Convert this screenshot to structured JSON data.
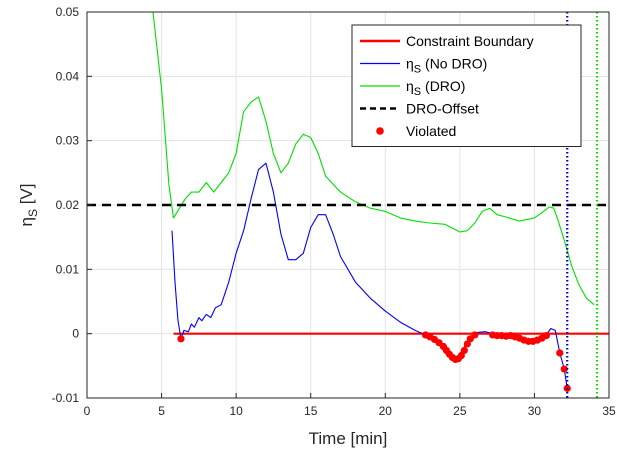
{
  "chart_data": {
    "type": "line",
    "xlabel": "Time [min]",
    "ylabel": "η",
    "ylabel_subscript": "S",
    "ylabel_unit": " [V]",
    "xlim": [
      0,
      35
    ],
    "ylim": [
      -0.01,
      0.05
    ],
    "xticks": [
      "0",
      "5",
      "10",
      "15",
      "20",
      "25",
      "30",
      "35"
    ],
    "yticks": [
      "-0.01",
      "0",
      "0.01",
      "0.02",
      "0.03",
      "0.04",
      "0.05"
    ],
    "grid": true,
    "legend_position": "top-right",
    "series": [
      {
        "name": "Constraint Boundary",
        "color": "#ff0000",
        "x": [
          5.8,
          35
        ],
        "y": [
          0,
          0
        ]
      },
      {
        "name": "ηS (No DRO)",
        "color": "#0000ff",
        "x": [
          5.7,
          5.9,
          6.1,
          6.3,
          6.5,
          6.8,
          7.0,
          7.2,
          7.5,
          7.7,
          8.0,
          8.3,
          8.6,
          9.0,
          9.5,
          10.0,
          10.5,
          11.0,
          11.5,
          12.0,
          12.5,
          13.0,
          13.5,
          14.0,
          14.5,
          15.0,
          15.5,
          16.0,
          16.5,
          17.0,
          18.0,
          19.0,
          20.0,
          21.0,
          22.0,
          22.7,
          23.2,
          23.7,
          24.2,
          24.7,
          25.2,
          25.7,
          26.2,
          26.7,
          27.2,
          27.7,
          28.2,
          28.7,
          29.2,
          29.7,
          30.2,
          30.7,
          31.1,
          31.4,
          31.7,
          32.0,
          32.2
        ],
        "y": [
          0.016,
          0.008,
          0.002,
          -0.0008,
          0.0005,
          0.0003,
          0.0015,
          0.001,
          0.0025,
          0.002,
          0.003,
          0.0025,
          0.004,
          0.0045,
          0.008,
          0.0125,
          0.016,
          0.021,
          0.0255,
          0.0265,
          0.022,
          0.0155,
          0.0115,
          0.0115,
          0.0125,
          0.0165,
          0.0185,
          0.0185,
          0.0155,
          0.012,
          0.008,
          0.0055,
          0.0035,
          0.0018,
          0.0005,
          -0.0002,
          -0.001,
          -0.002,
          -0.0035,
          -0.004,
          -0.0025,
          -0.0005,
          0.0002,
          0.0003,
          0.0,
          -0.0003,
          -0.0002,
          -0.0003,
          -0.0008,
          -0.0012,
          -0.001,
          -0.0005,
          0.0008,
          0.0005,
          -0.003,
          -0.0055,
          -0.0085
        ]
      },
      {
        "name": "ηS (DRO)",
        "color": "#00e000",
        "x": [
          4.4,
          5.0,
          5.5,
          5.8,
          6.2,
          6.6,
          7.0,
          7.5,
          8.0,
          8.5,
          9.0,
          9.5,
          10.0,
          10.5,
          11.0,
          11.5,
          12.0,
          12.5,
          13.0,
          13.5,
          14.0,
          14.5,
          15.0,
          15.5,
          16.0,
          17.0,
          18.0,
          19.0,
          20.0,
          21.0,
          22.0,
          23.0,
          24.0,
          25.0,
          25.5,
          26.0,
          26.5,
          27.0,
          27.5,
          28.0,
          29.0,
          30.0,
          30.5,
          31.0,
          31.3,
          31.6,
          32.0,
          32.5,
          33.0,
          33.5,
          34.0
        ],
        "y": [
          0.0505,
          0.038,
          0.023,
          0.018,
          0.0195,
          0.021,
          0.022,
          0.022,
          0.0235,
          0.022,
          0.0235,
          0.025,
          0.028,
          0.0345,
          0.036,
          0.0368,
          0.033,
          0.028,
          0.025,
          0.0265,
          0.0295,
          0.031,
          0.0305,
          0.028,
          0.0245,
          0.022,
          0.0205,
          0.0195,
          0.019,
          0.018,
          0.0175,
          0.0172,
          0.017,
          0.0158,
          0.016,
          0.0172,
          0.019,
          0.0195,
          0.0185,
          0.0182,
          0.0175,
          0.018,
          0.0188,
          0.0197,
          0.0195,
          0.0175,
          0.0145,
          0.0105,
          0.0075,
          0.0055,
          0.0045
        ]
      },
      {
        "name": "DRO-Offset",
        "color": "#000000",
        "x": [
          0,
          35
        ],
        "y": [
          0.02,
          0.02
        ]
      },
      {
        "name": "Violated",
        "color": "#ff0000",
        "x": [
          6.3,
          22.7,
          23.0,
          23.3,
          23.6,
          23.9,
          24.1,
          24.3,
          24.5,
          24.7,
          24.9,
          25.1,
          25.3,
          25.5,
          25.7,
          26.0,
          27.2,
          27.5,
          27.8,
          28.1,
          28.4,
          28.7,
          29.0,
          29.3,
          29.6,
          29.9,
          30.2,
          30.5,
          30.8,
          31.7,
          32.0,
          32.2
        ],
        "y": [
          -0.0008,
          -0.0002,
          -0.0005,
          -0.0009,
          -0.0014,
          -0.002,
          -0.0026,
          -0.0032,
          -0.0037,
          -0.004,
          -0.0039,
          -0.0034,
          -0.0026,
          -0.0016,
          -0.0008,
          -0.0002,
          -0.0002,
          -0.0003,
          -0.0003,
          -0.0004,
          -0.0003,
          -0.0005,
          -0.0007,
          -0.001,
          -0.0012,
          -0.0012,
          -0.001,
          -0.0007,
          -0.0003,
          -0.003,
          -0.0055,
          -0.0085
        ]
      }
    ],
    "vertical_lines": [
      {
        "x": 32.2,
        "color": "#0000c0"
      },
      {
        "x": 34.2,
        "color": "#00e000"
      }
    ],
    "legend": [
      {
        "label": "Constraint Boundary",
        "main": "Constraint Boundary",
        "sub": "",
        "tail": "",
        "style": "line",
        "color": "#ff0000"
      },
      {
        "label": "ηS (No DRO)",
        "main": "η",
        "sub": "S",
        "tail": " (No DRO)",
        "style": "line",
        "color": "#0000ff"
      },
      {
        "label": "ηS (DRO)",
        "main": "η",
        "sub": "S",
        "tail": " (DRO)",
        "style": "line",
        "color": "#00e000"
      },
      {
        "label": "DRO-Offset",
        "main": "DRO-Offset",
        "sub": "",
        "tail": "",
        "style": "dashed",
        "color": "#000000"
      },
      {
        "label": "Violated",
        "main": "Violated",
        "sub": "",
        "tail": "",
        "style": "marker",
        "color": "#ff0000"
      }
    ]
  }
}
